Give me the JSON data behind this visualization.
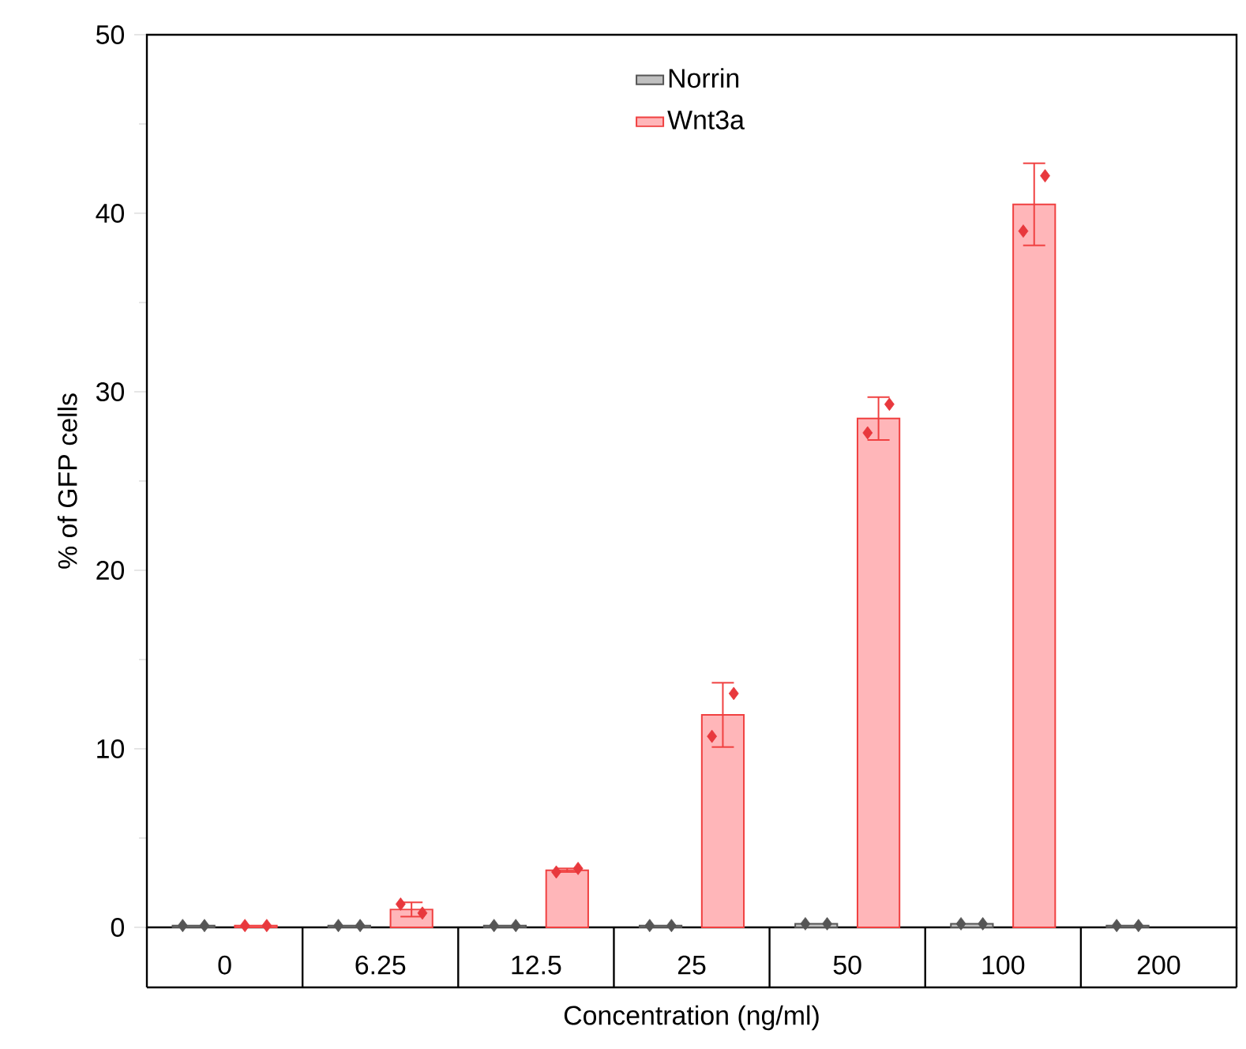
{
  "chart_data": {
    "type": "bar",
    "xlabel": "Concentration (ng/ml)",
    "ylabel": "% of GFP cells",
    "categories": [
      "0",
      "6.25",
      "12.5",
      "25",
      "50",
      "100",
      "200"
    ],
    "ylim": [
      0,
      50
    ],
    "yticks": [
      0,
      10,
      20,
      30,
      40,
      50
    ],
    "legend": "top",
    "grid": false,
    "series": [
      {
        "name": "Norrin",
        "color": "#c0c0c0",
        "values": [
          0.1,
          0.1,
          0.1,
          0.1,
          0.2,
          0.2,
          0.1
        ]
      },
      {
        "name": "Wnt3a",
        "color": "#ffb6b9",
        "values": [
          0.1,
          1.0,
          3.2,
          11.9,
          28.5,
          40.5,
          null
        ],
        "errors": [
          null,
          0.4,
          0.1,
          1.8,
          1.2,
          2.3,
          null
        ]
      },
      {
        "type": "scatter",
        "color": "#555555",
        "marker": "diamond",
        "x": [
          "0",
          "0",
          "6.25",
          "6.25",
          "12.5",
          "12.5",
          "25",
          "25",
          "50",
          "50",
          "100",
          "100",
          "200",
          "200"
        ],
        "values": [
          0.1,
          0.1,
          0.1,
          0.1,
          0.1,
          0.1,
          0.1,
          0.1,
          0.2,
          0.2,
          0.2,
          0.2,
          0.1,
          0.1
        ]
      },
      {
        "type": "scatter",
        "color": "#e8383d",
        "marker": "diamond",
        "x": [
          "0",
          "0",
          "6.25",
          "6.25",
          "12.5",
          "12.5",
          "25",
          "25",
          "50",
          "50",
          "100",
          "100"
        ],
        "values": [
          0.1,
          0.1,
          1.3,
          0.8,
          3.1,
          3.3,
          10.7,
          13.1,
          27.7,
          29.3,
          39.0,
          42.1
        ]
      }
    ]
  }
}
